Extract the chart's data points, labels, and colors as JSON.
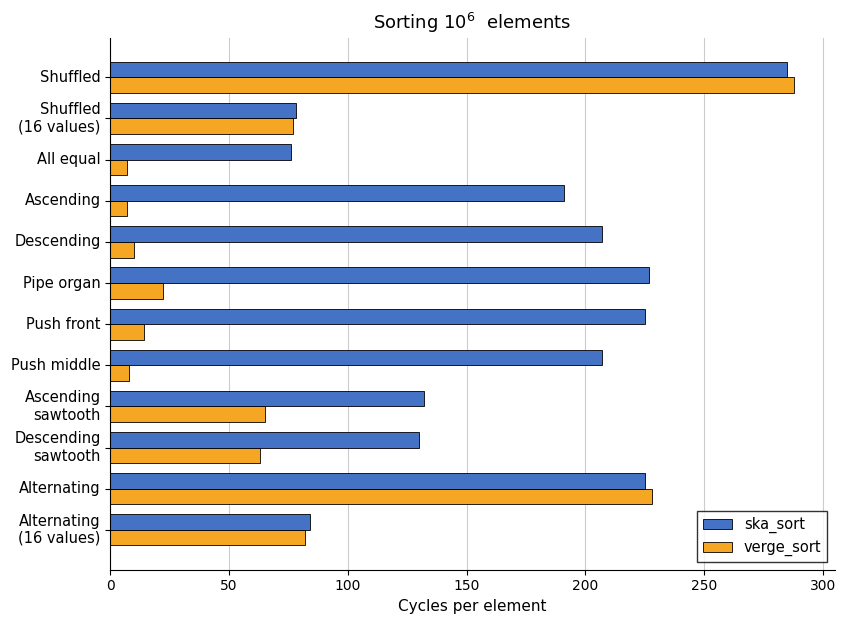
{
  "title": "Sorting $10^6$  elements",
  "xlabel": "Cycles per element",
  "categories": [
    "Shuffled",
    "Shuffled\n(16 values)",
    "All equal",
    "Ascending",
    "Descending",
    "Pipe organ",
    "Push front",
    "Push middle",
    "Ascending\nsawtooth",
    "Descending\nsawtooth",
    "Alternating",
    "Alternating\n(16 values)"
  ],
  "ska_sort": [
    285,
    78,
    76,
    191,
    207,
    227,
    225,
    207,
    132,
    130,
    225,
    84
  ],
  "verge_sort": [
    288,
    77,
    7,
    7,
    10,
    22,
    14,
    8,
    65,
    63,
    228,
    82
  ],
  "ska_color": "#4472c4",
  "verge_color": "#f5a623",
  "bar_height": 0.38,
  "xlim": [
    0,
    305
  ],
  "xticks": [
    0,
    50,
    100,
    150,
    200,
    250,
    300
  ],
  "legend_labels": [
    "ska_sort",
    "verge_sort"
  ],
  "figsize": [
    8.48,
    6.25
  ],
  "dpi": 100
}
